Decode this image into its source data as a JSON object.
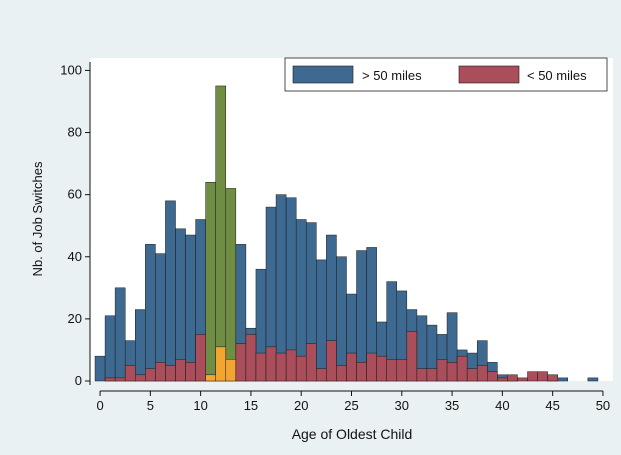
{
  "colors": {
    "background": "#eaf1f3",
    "plot_background": "#ffffff",
    "series_far": "#3e6a92",
    "series_near": "#a94e5a",
    "highlight_far": "#6f8d43",
    "highlight_near": "#f2a530",
    "bar_edge": "#1a1a1a"
  },
  "chart_data": {
    "type": "bar",
    "xlabel": "Age of Oldest Child",
    "ylabel": "Nb. of Job Switches",
    "xlim": [
      -1,
      51
    ],
    "ylim": [
      0,
      104
    ],
    "x_ticks": [
      "0",
      "5",
      "10",
      "15",
      "20",
      "25",
      "30",
      "35",
      "40",
      "45",
      "50"
    ],
    "y_ticks": [
      "0",
      "20",
      "40",
      "60",
      "80",
      "100"
    ],
    "legend_position": "top-right",
    "highlight_ages": [
      11,
      12,
      13
    ],
    "series": [
      {
        "name": "> 50 miles",
        "color_key": "series_far",
        "x": [
          0,
          1,
          2,
          3,
          4,
          5,
          6,
          7,
          8,
          9,
          10,
          11,
          12,
          13,
          14,
          15,
          16,
          17,
          18,
          19,
          20,
          21,
          22,
          23,
          24,
          25,
          26,
          27,
          28,
          29,
          30,
          31,
          32,
          33,
          34,
          35,
          36,
          37,
          38,
          39,
          40,
          41,
          42,
          43,
          44,
          45,
          46,
          47,
          48,
          49,
          50
        ],
        "values": [
          8,
          21,
          30,
          13,
          23,
          44,
          41,
          58,
          49,
          47,
          52,
          64,
          95,
          62,
          44,
          17,
          36,
          56,
          60,
          59,
          52,
          51,
          39,
          47,
          40,
          28,
          42,
          43,
          19,
          32,
          29,
          23,
          21,
          18,
          15,
          22,
          10,
          9,
          13,
          6,
          2,
          1,
          0,
          0,
          0,
          2,
          1,
          0,
          0,
          1,
          0
        ]
      },
      {
        "name": "< 50 miles",
        "color_key": "series_near",
        "x": [
          0,
          1,
          2,
          3,
          4,
          5,
          6,
          7,
          8,
          9,
          10,
          11,
          12,
          13,
          14,
          15,
          16,
          17,
          18,
          19,
          20,
          21,
          22,
          23,
          24,
          25,
          26,
          27,
          28,
          29,
          30,
          31,
          32,
          33,
          34,
          35,
          36,
          37,
          38,
          39,
          40,
          41,
          42,
          43,
          44,
          45,
          46,
          47,
          48,
          49,
          50
        ],
        "values": [
          0,
          1,
          1,
          5,
          2,
          4,
          6,
          5,
          7,
          6,
          15,
          2,
          11,
          7,
          12,
          15,
          9,
          11,
          9,
          10,
          8,
          12,
          4,
          13,
          5,
          9,
          6,
          9,
          8,
          7,
          7,
          16,
          4,
          4,
          7,
          6,
          8,
          4,
          5,
          3,
          1,
          2,
          1,
          3,
          3,
          2,
          0,
          0,
          0,
          0,
          0
        ]
      }
    ]
  }
}
